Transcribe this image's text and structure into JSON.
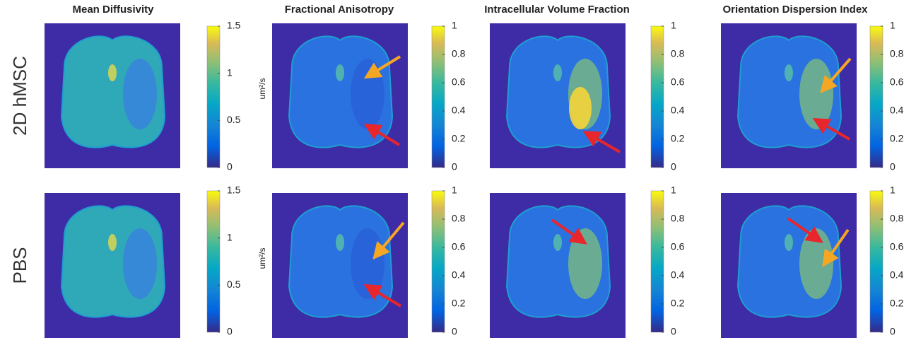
{
  "columns": [
    {
      "title": "Mean Diffusivity",
      "clim": [
        0,
        1.5
      ],
      "ticks": [
        0,
        0.5,
        1,
        1.5
      ]
    },
    {
      "title": "Fractional Anisotropy",
      "clim": [
        0,
        1
      ],
      "ticks": [
        0,
        0.2,
        0.4,
        0.6,
        0.8,
        1
      ]
    },
    {
      "title": "Intracellular Volume Fraction",
      "clim": [
        0,
        1
      ],
      "ticks": [
        0,
        0.2,
        0.4,
        0.6,
        0.8,
        1
      ]
    },
    {
      "title": "Orientation Dispersion Index",
      "clim": [
        0,
        1
      ],
      "ticks": [
        0,
        0.2,
        0.4,
        0.6,
        0.8,
        1
      ]
    }
  ],
  "rows": [
    "2D hMSC",
    "PBS"
  ],
  "unit": "um²/s"
}
